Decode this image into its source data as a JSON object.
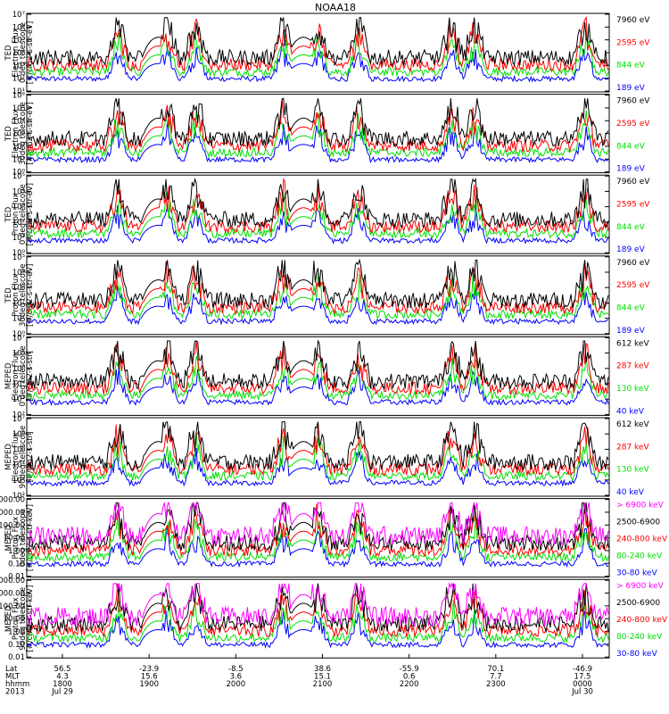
{
  "chart_data": {
    "type": "line",
    "title": "NOAA18",
    "panels": [
      {
        "id": "ted-e-0",
        "ylabel": [
          "TED",
          "Electron Flux",
          "0 deg telescope",
          "[#/cm2-s-str-eV]"
        ],
        "yscale": "log",
        "ylim": [
          1,
          10000000
        ],
        "ytick_labels": [
          "10¹",
          "10²",
          "10³",
          "10⁴",
          "10⁵",
          "10⁶",
          "10⁷"
        ],
        "series": [
          {
            "name": "7960 eV",
            "color": "#000000"
          },
          {
            "name": "2595 eV",
            "color": "#ff0000"
          },
          {
            "name": "844 eV",
            "color": "#00e000"
          },
          {
            "name": "189 eV",
            "color": "#0000ff"
          }
        ]
      },
      {
        "id": "ted-e-30",
        "ylabel": [
          "TED",
          "Electron Flux",
          "30deg telescope",
          "[#/cm2-s-str-eV]"
        ],
        "yscale": "log",
        "ylim": [
          1,
          10000000
        ],
        "ytick_labels": [
          "10⁰",
          "10¹",
          "10²",
          "10³",
          "10⁴",
          "10⁵",
          "10⁶"
        ],
        "series": [
          {
            "name": "7960 eV",
            "color": "#000000"
          },
          {
            "name": "2595 eV",
            "color": "#ff0000"
          },
          {
            "name": "844 eV",
            "color": "#00e000"
          },
          {
            "name": "189 eV",
            "color": "#0000ff"
          }
        ]
      },
      {
        "id": "ted-p-0",
        "ylabel": [
          "TED",
          "Proton Flux",
          "0 deg telescope",
          "[#/cm2-s-str-eV]"
        ],
        "yscale": "log",
        "ylim": [
          1,
          100000
        ],
        "ytick_labels": [
          "10⁰",
          "10¹",
          "10²",
          "10³",
          "10⁴",
          "10⁵"
        ],
        "series": [
          {
            "name": "7960 eV",
            "color": "#000000"
          },
          {
            "name": "2595 eV",
            "color": "#ff0000"
          },
          {
            "name": "844 eV",
            "color": "#00e000"
          },
          {
            "name": "189 eV",
            "color": "#0000ff"
          }
        ]
      },
      {
        "id": "ted-p-30",
        "ylabel": [
          "TED",
          "Proton Flux",
          "30deg telescope",
          "[#/cm2-s-str-eV]"
        ],
        "yscale": "log",
        "ylim": [
          1,
          100000
        ],
        "ytick_labels": [
          "10⁰",
          "10¹",
          "10²",
          "10³",
          "10⁴",
          "10⁵"
        ],
        "series": [
          {
            "name": "7960 eV",
            "color": "#000000"
          },
          {
            "name": "2595 eV",
            "color": "#ff0000"
          },
          {
            "name": "844 eV",
            "color": "#00e000"
          },
          {
            "name": "189 eV",
            "color": "#0000ff"
          }
        ]
      },
      {
        "id": "meped-e-0",
        "ylabel": [
          "MEPED",
          "Electron Flux",
          "0 deg telescope",
          "[#/cm2-s-str]"
        ],
        "yscale": "log",
        "ylim": [
          100,
          10000000
        ],
        "ytick_labels": [
          "10²",
          "10³",
          "10⁴",
          "10⁵",
          "10⁶",
          "10⁷"
        ],
        "series": [
          {
            "name": "612 keV",
            "color": "#000000"
          },
          {
            "name": "287 keV",
            "color": "#ff0000"
          },
          {
            "name": "130 keV",
            "color": "#00e000"
          },
          {
            "name": "40 keV",
            "color": "#0000ff"
          }
        ]
      },
      {
        "id": "meped-e-90",
        "ylabel": [
          "MEPED",
          "Electron Flux",
          "90deg telescope",
          "[#/cm2-s-str]"
        ],
        "yscale": "log",
        "ylim": [
          100,
          10000000
        ],
        "ytick_labels": [
          "10²",
          "10³",
          "10⁴",
          "10⁵",
          "10⁶",
          "10⁷"
        ],
        "series": [
          {
            "name": "612 keV",
            "color": "#000000"
          },
          {
            "name": "287 keV",
            "color": "#ff0000"
          },
          {
            "name": "130 keV",
            "color": "#00e000"
          },
          {
            "name": "40 keV",
            "color": "#0000ff"
          }
        ]
      },
      {
        "id": "meped-p-0",
        "ylabel": [
          "MEPED",
          "Proton Flux",
          "0deg telescope",
          "[#/cm2-s-str-keV]"
        ],
        "yscale": "log",
        "ylim": [
          0.01,
          10000
        ],
        "ytick_labels": [
          "0.01",
          "0.10",
          "1.00",
          "10.00",
          "100.00",
          "1000.00",
          "10000.00"
        ],
        "series": [
          {
            "name": "> 6900 keV",
            "color": "#ff00ff"
          },
          {
            "name": "2500-6900",
            "color": "#000000"
          },
          {
            "name": "240-800 keV",
            "color": "#ff0000"
          },
          {
            "name": "80-240 keV",
            "color": "#00e000"
          },
          {
            "name": "30-80 keV",
            "color": "#0000ff"
          }
        ]
      },
      {
        "id": "meped-p-90",
        "ylabel": [
          "MEPED",
          "Proton Flux",
          "90deg telescope",
          "[#/cm2-s-str-keV]"
        ],
        "yscale": "log",
        "ylim": [
          0.01,
          10000
        ],
        "ytick_labels": [
          "0.01",
          "0.10",
          "1.00",
          "10.00",
          "100.00",
          "1000.00",
          "10000.00"
        ],
        "series": [
          {
            "name": "> 6900 keV",
            "color": "#ff00ff"
          },
          {
            "name": "2500-6900",
            "color": "#000000"
          },
          {
            "name": "240-800 keV",
            "color": "#ff0000"
          },
          {
            "name": "80-240 keV",
            "color": "#00e000"
          },
          {
            "name": "30-80 keV",
            "color": "#0000ff"
          }
        ]
      }
    ],
    "x_axis": {
      "row_labels": [
        "Lat",
        "MLT",
        "hhmm",
        "2013"
      ],
      "ticks": [
        {
          "lat": "56.5",
          "mlt": "4.3",
          "hhmm": "1800",
          "date": "Jul 29"
        },
        {
          "lat": "-23.9",
          "mlt": "15.6",
          "hhmm": "1900",
          "date": ""
        },
        {
          "lat": "-8.5",
          "mlt": "3.6",
          "hhmm": "2000",
          "date": ""
        },
        {
          "lat": "38.6",
          "mlt": "15.1",
          "hhmm": "2100",
          "date": ""
        },
        {
          "lat": "-55.9",
          "mlt": "0.6",
          "hhmm": "2200",
          "date": ""
        },
        {
          "lat": "70.1",
          "mlt": "7.7",
          "hhmm": "2300",
          "date": ""
        },
        {
          "lat": "-46.9",
          "mlt": "17.5",
          "hhmm": "0000",
          "date": "Jul 30"
        }
      ]
    },
    "grid": false,
    "legend_placement": "right"
  }
}
